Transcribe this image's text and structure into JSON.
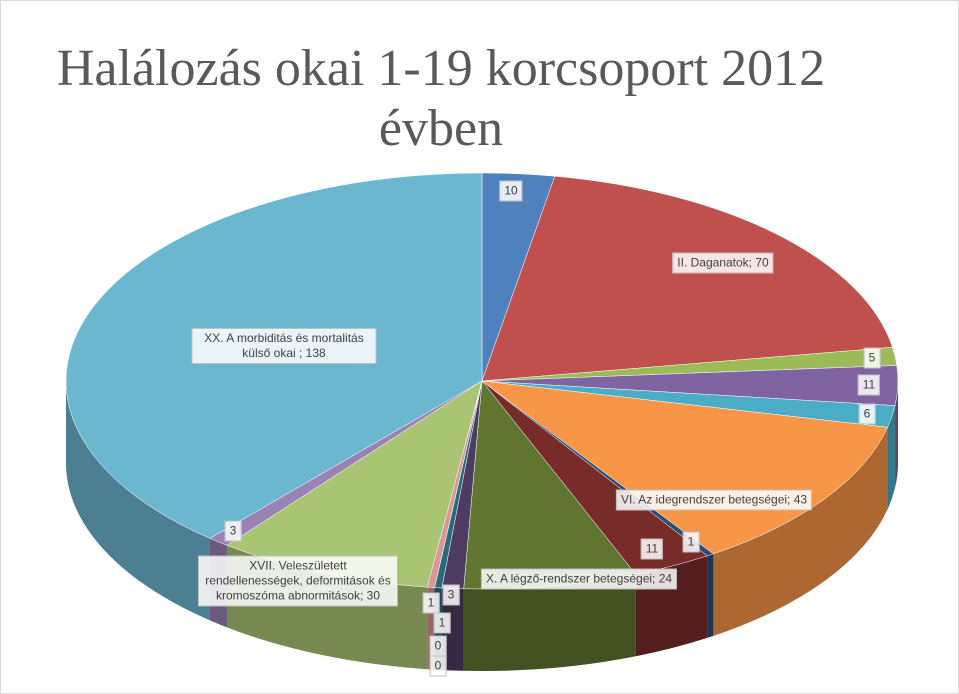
{
  "chart_data": {
    "type": "pie3d",
    "title": "Halálozás okai 1-19 korcsoport 2012 évben",
    "values": [
      10,
      70,
      5,
      11,
      6,
      43,
      1,
      11,
      24,
      3,
      1,
      0,
      0,
      1,
      30,
      3,
      138
    ],
    "value_labels": [
      null,
      "II. Daganatok; 70",
      null,
      null,
      null,
      "VI. Az idegrendszer betegségei; 43",
      null,
      null,
      "X. A légző-rendszer betegségei; 24",
      null,
      null,
      null,
      null,
      null,
      "XVII. Veleszületett rendellenességek, deformitások és kromoszóma abnormitások; 30",
      null,
      "XX. A morbiditás és mortalitás külső okai ; 138"
    ],
    "colors": [
      "#4f81bd",
      "#c0504d",
      "#9bbb59",
      "#8064a2",
      "#4bacc6",
      "#f79646",
      "#2c4d75",
      "#772c2a",
      "#5f7530",
      "#4d3b62",
      "#276a7c",
      "#b65708",
      "#729aca",
      "#d99694",
      "#a9c574",
      "#9983b5",
      "#6cb7d0"
    ]
  }
}
